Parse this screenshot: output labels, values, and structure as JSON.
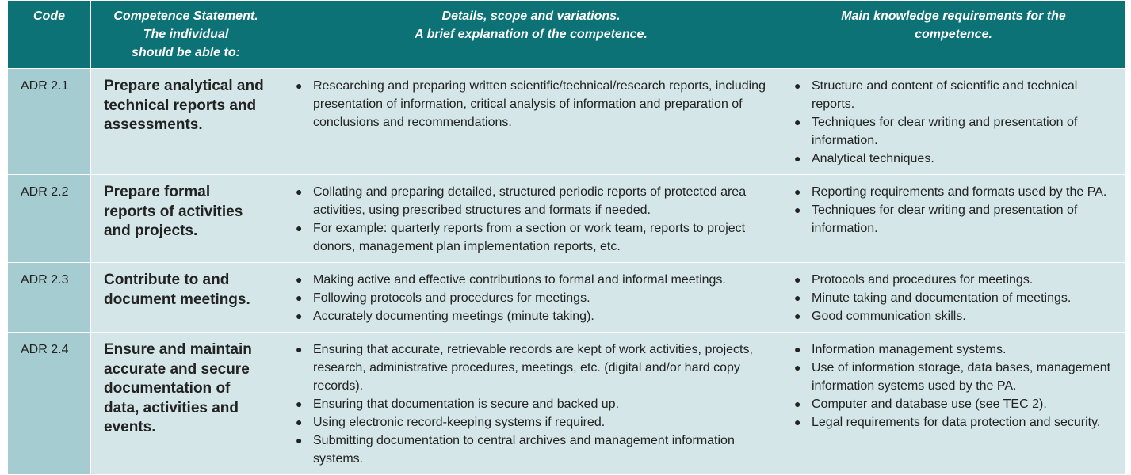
{
  "table": {
    "header": [
      [
        "Code"
      ],
      [
        "Competence Statement.",
        "The individual",
        "should be able to:"
      ],
      [
        "Details, scope and variations.",
        "A brief explanation of the competence."
      ],
      [
        "Main knowledge requirements for the",
        "competence."
      ]
    ],
    "rows": [
      {
        "code": "ADR 2.1",
        "statement": "Prepare analytical and technical reports and assessments.",
        "details": [
          "Researching and preparing written scientific/technical/research reports, including presentation of information, critical analysis of information and preparation of conclusions and recommendations."
        ],
        "knowledge": [
          "Structure and content of scientific and technical reports.",
          "Techniques for clear writing and presentation of information.",
          "Analytical techniques."
        ]
      },
      {
        "code": "ADR 2.2",
        "statement": "Prepare formal reports of activities and projects.",
        "details": [
          "Collating and preparing detailed, structured periodic reports of protected area activities, using prescribed structures and formats if needed.",
          "For example: quarterly reports from a section or work team, reports to project donors, management plan implementation reports, etc."
        ],
        "knowledge": [
          "Reporting requirements and formats used by the PA.",
          "Techniques for clear writing and presentation of information."
        ]
      },
      {
        "code": "ADR 2.3",
        "statement": "Contribute to and document meetings.",
        "details": [
          "Making active and effective contributions to formal and informal meetings.",
          "Following protocols and procedures for meetings.",
          "Accurately documenting meetings (minute taking)."
        ],
        "knowledge": [
          "Protocols and procedures for meetings.",
          "Minute taking and documentation of meetings.",
          "Good communication skills."
        ]
      },
      {
        "code": "ADR 2.4",
        "statement": "Ensure and maintain accurate and secure documentation of data, activities and events.",
        "details": [
          "Ensuring that accurate, retrievable records are kept of work activities, projects, research, administrative procedures, meetings, etc. (digital and/or hard copy records).",
          "Ensuring that documentation is secure and backed up.",
          "Using electronic record-keeping systems if required.",
          "Submitting documentation to central archives and management information systems."
        ],
        "knowledge": [
          "Information management systems.",
          "Use of information storage, data bases, management information systems used by the PA.",
          "Computer and database use (see TEC 2).",
          "Legal requirements for data protection and security."
        ]
      }
    ]
  }
}
